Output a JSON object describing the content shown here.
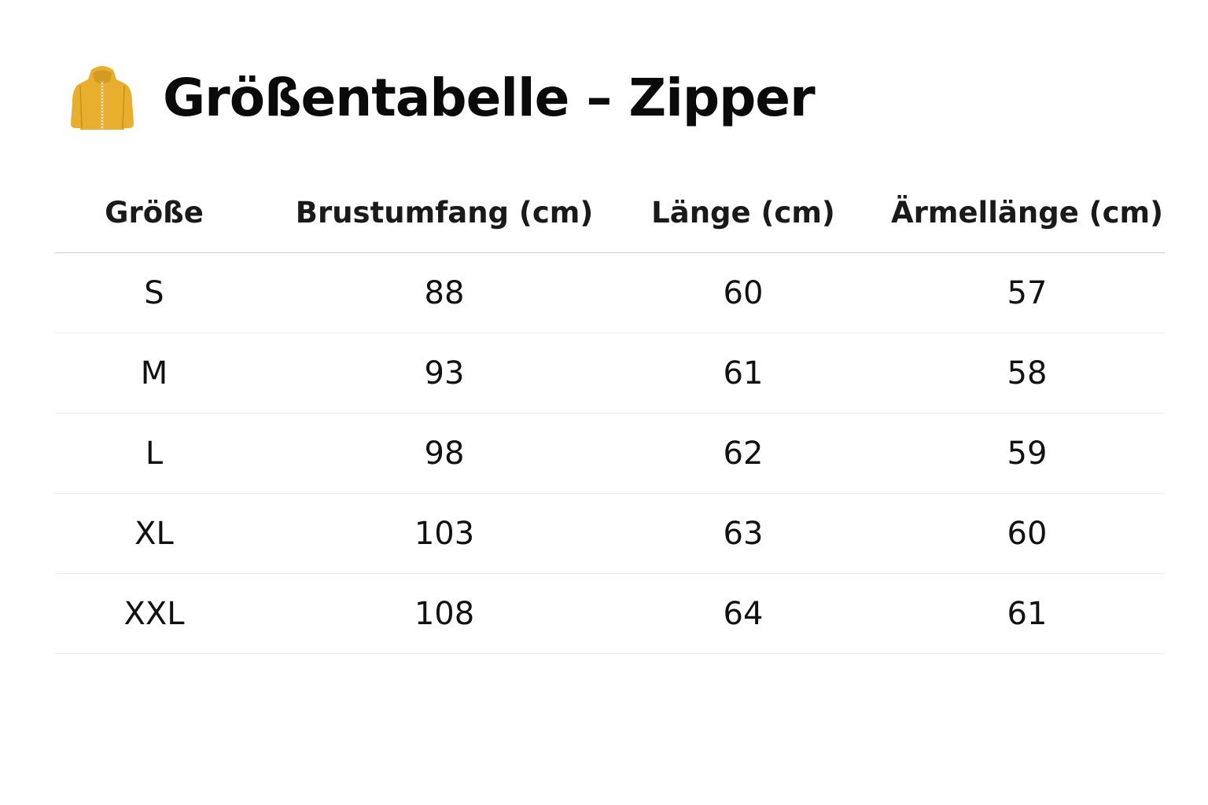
{
  "title": "Größentabelle – Zipper",
  "icon": "yellow-zip-hoodie",
  "accent_color": "#E8AE2E",
  "table": {
    "headers": [
      "Größe",
      "Brustumfang (cm)",
      "Länge (cm)",
      "Ärmellänge (cm)"
    ],
    "rows": [
      [
        "S",
        "88",
        "60",
        "57"
      ],
      [
        "M",
        "93",
        "61",
        "58"
      ],
      [
        "L",
        "98",
        "62",
        "59"
      ],
      [
        "XL",
        "103",
        "63",
        "60"
      ],
      [
        "XXL",
        "108",
        "64",
        "61"
      ]
    ]
  }
}
